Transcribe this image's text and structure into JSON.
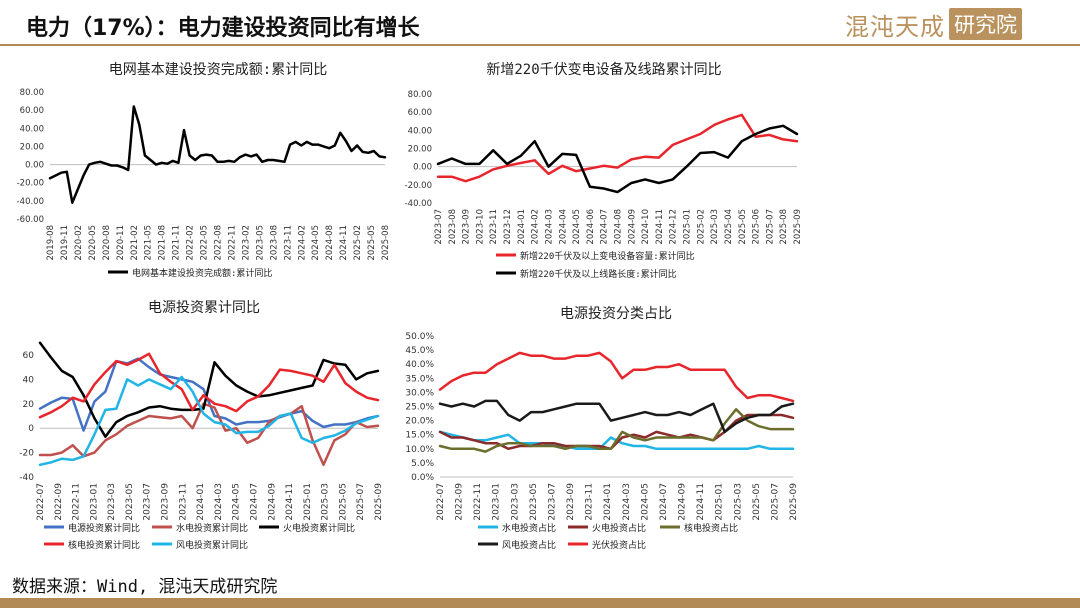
{
  "header": {
    "title": "电力（17%）：电力建设投资同比有增长",
    "logo_text": "混沌天成",
    "logo_box": "研究院"
  },
  "colors": {
    "black": "#000000",
    "red": "#e8252b",
    "blue": "#4472c4",
    "brown": "#c0504d",
    "lightblue": "#21b5e6",
    "dark": "#1a1a1a",
    "olive": "#6b6e2d",
    "maroon": "#8b2a2a"
  },
  "footer": {
    "source": "数据来源：Wind, 混沌天成研究院"
  },
  "chart_data": [
    {
      "type": "line",
      "title": "电网基本建设投资完成额:累计同比",
      "ylim": [
        -60,
        80
      ],
      "yticks": [
        "80.00",
        "60.00",
        "40.00",
        "20.00",
        "0.00",
        "-20.00",
        "-40.00",
        "-60.00"
      ],
      "ytick_values": [
        80,
        60,
        40,
        20,
        0,
        -20,
        -40,
        -60
      ],
      "tick_labels": [
        "2019-08",
        "2019-11",
        "2020-02",
        "2020-05",
        "2020-08",
        "2020-11",
        "2021-02",
        "2021-05",
        "2021-08",
        "2021-11",
        "2022-02",
        "2022-05",
        "2022-08",
        "2022-11",
        "2023-02",
        "2023-05",
        "2023-08",
        "2023-11",
        "2024-02",
        "2024-05",
        "2024-08",
        "2024-11",
        "2025-02",
        "2025-05",
        "2025-08"
      ],
      "series": [
        {
          "name": "电网基本建设投资完成额:累计同比",
          "color": "#000000",
          "values": [
            -15,
            -12,
            -9,
            -8,
            -42,
            -27,
            -12,
            0,
            2,
            3,
            1,
            -1,
            -1,
            -3,
            -6,
            64,
            44,
            10,
            5,
            0,
            2,
            1,
            4,
            2,
            38,
            10,
            5,
            10,
            11,
            10,
            3,
            3,
            4,
            3,
            8,
            11,
            9,
            11,
            3,
            5,
            5,
            4,
            3,
            22,
            25,
            21,
            25,
            22,
            22,
            20,
            18,
            21,
            35,
            26,
            15,
            21,
            14,
            13,
            15,
            9,
            8
          ]
        }
      ]
    },
    {
      "type": "line",
      "title": "新增220千伏变电设备及线路累计同比",
      "ylim": [
        -40,
        80
      ],
      "yticks": [
        "80.00",
        "60.00",
        "40.00",
        "20.00",
        "0.00",
        "-20.00",
        "-40.00"
      ],
      "ytick_values": [
        80,
        60,
        40,
        20,
        0,
        -20,
        -40
      ],
      "tick_labels": [
        "2023-07",
        "2023-08",
        "2023-09",
        "2023-10",
        "2023-11",
        "2023-12",
        "2024-01",
        "2024-02",
        "2024-03",
        "2024-04",
        "2024-05",
        "2024-06",
        "2024-07",
        "2024-08",
        "2024-09",
        "2024-10",
        "2024-11",
        "2024-12",
        "2025-01",
        "2025-02",
        "2025-03",
        "2025-04",
        "2025-05",
        "2025-06",
        "2025-07",
        "2025-08",
        "2025-09"
      ],
      "series": [
        {
          "name": "新增220千伏及以上变电设备容量:累计同比",
          "color": "#e8252b",
          "values": [
            -11,
            -11,
            -16,
            -11,
            -3,
            1,
            4,
            7,
            -8,
            1,
            -5,
            -2,
            1,
            -1,
            8,
            11,
            10,
            24,
            30,
            36,
            46,
            52,
            57,
            33,
            35,
            30,
            28
          ]
        },
        {
          "name": "新增220千伏及以上线路长度:累计同比",
          "color": "#000000",
          "values": [
            3,
            9,
            3,
            3,
            18,
            3,
            12,
            28,
            0,
            14,
            13,
            -22,
            -24,
            -28,
            -18,
            -14,
            -18,
            -14,
            0,
            15,
            16,
            10,
            28,
            36,
            42,
            45,
            36
          ]
        }
      ]
    },
    {
      "type": "line",
      "title": "电源投资累计同比",
      "ylim": [
        -40,
        60
      ],
      "yticks": [
        "60",
        "40",
        "20",
        "0",
        "-20",
        "-40"
      ],
      "ytick_values": [
        60,
        40,
        20,
        0,
        -20,
        -40
      ],
      "tick_labels": [
        "2022-07",
        "2022-09",
        "2022-11",
        "2023-01",
        "2023-03",
        "2023-05",
        "2023-07",
        "2023-09",
        "2023-11",
        "2024-01",
        "2024-03",
        "2024-05",
        "2024-07",
        "2024-09",
        "2024-11",
        "2025-01",
        "2025-03",
        "2025-05",
        "2025-07",
        "2025-09"
      ],
      "series": [
        {
          "name": "电源投资累计同比",
          "color": "#4472c4",
          "values": [
            16,
            21,
            25,
            24,
            -2,
            22,
            30,
            55,
            53,
            57,
            50,
            44,
            42,
            40,
            38,
            32,
            10,
            8,
            3,
            5,
            5,
            6,
            9,
            12,
            14,
            6,
            1,
            3,
            3,
            5,
            8,
            10
          ]
        },
        {
          "name": "水电投资累计同比",
          "color": "#c0504d",
          "values": [
            -22,
            -22,
            -20,
            -14,
            -23,
            -20,
            -10,
            -5,
            2,
            6,
            10,
            9,
            8,
            10,
            0,
            20,
            17,
            -2,
            0,
            -12,
            -8,
            5,
            10,
            12,
            18,
            -10,
            -30,
            -10,
            -5,
            5,
            1,
            2
          ]
        },
        {
          "name": "火电投资累计同比",
          "color": "#000000",
          "values": [
            70,
            58,
            47,
            42,
            27,
            8,
            -7,
            5,
            10,
            13,
            17,
            18,
            16,
            15,
            15,
            16,
            54,
            43,
            35,
            30,
            26,
            27,
            29,
            31,
            33,
            35,
            56,
            53,
            52,
            40,
            45,
            47
          ]
        },
        {
          "name": "核电投资累计同比",
          "color": "#e8252b",
          "values": [
            9,
            13,
            18,
            25,
            22,
            36,
            46,
            55,
            52,
            56,
            61,
            45,
            38,
            32,
            15,
            27,
            20,
            18,
            14,
            22,
            26,
            35,
            48,
            47,
            45,
            43,
            38,
            52,
            37,
            30,
            25,
            23
          ]
        },
        {
          "name": "风电投资累计同比",
          "color": "#21b5e6",
          "values": [
            -30,
            -28,
            -25,
            -26,
            -23,
            -5,
            15,
            16,
            40,
            35,
            40,
            36,
            32,
            42,
            30,
            12,
            5,
            3,
            -4,
            -3,
            -3,
            2,
            10,
            12,
            -8,
            -12,
            -8,
            -6,
            -2,
            4,
            7,
            10
          ]
        }
      ]
    },
    {
      "type": "line",
      "title": "电源投资分类占比",
      "ylim": [
        0,
        50
      ],
      "yticks": [
        "50.0%",
        "45.0%",
        "40.0%",
        "35.0%",
        "30.0%",
        "25.0%",
        "20.0%",
        "15.0%",
        "10.0%",
        "5.0%",
        "0.0%"
      ],
      "ytick_values": [
        50,
        45,
        40,
        35,
        30,
        25,
        20,
        15,
        10,
        5,
        0
      ],
      "tick_labels": [
        "2022-07",
        "2022-09",
        "2022-11",
        "2023-01",
        "2023-03",
        "2023-05",
        "2023-07",
        "2023-09",
        "2023-11",
        "2024-01",
        "2024-03",
        "2024-05",
        "2024-07",
        "2024-09",
        "2024-11",
        "2025-01",
        "2025-03",
        "2025-05",
        "2025-07",
        "2025-09"
      ],
      "series": [
        {
          "name": "水电投资占比",
          "color": "#21b5e6",
          "values": [
            16,
            15,
            14,
            13,
            13,
            14,
            15,
            12,
            12,
            12,
            11,
            11,
            10,
            10,
            10,
            14,
            12,
            11,
            11,
            10,
            10,
            10,
            10,
            10,
            10,
            10,
            10,
            10,
            11,
            10,
            10,
            10
          ]
        },
        {
          "name": "火电投资占比",
          "color": "#8b2a2a",
          "values": [
            16,
            14,
            14,
            13,
            12,
            12,
            10,
            11,
            11,
            12,
            12,
            11,
            11,
            11,
            11,
            10,
            14,
            15,
            14,
            16,
            15,
            14,
            15,
            14,
            13,
            16,
            20,
            22,
            22,
            22,
            22,
            21
          ]
        },
        {
          "name": "核电投资占比",
          "color": "#6b6e2d",
          "values": [
            11,
            10,
            10,
            10,
            9,
            11,
            12,
            12,
            11,
            11,
            11,
            10,
            11,
            11,
            10,
            10,
            16,
            14,
            13,
            14,
            14,
            14,
            14,
            14,
            13,
            19,
            24,
            20,
            18,
            17,
            17,
            17
          ]
        },
        {
          "name": "风电投资占比",
          "color": "#1a1a1a",
          "values": [
            26,
            25,
            26,
            25,
            27,
            27,
            22,
            20,
            23,
            23,
            24,
            25,
            26,
            26,
            26,
            20,
            21,
            22,
            23,
            22,
            22,
            23,
            22,
            24,
            26,
            16,
            19,
            21,
            22,
            22,
            25,
            26
          ]
        },
        {
          "name": "光伏投资占比",
          "color": "#e8252b",
          "values": [
            31,
            34,
            36,
            37,
            37,
            40,
            42,
            44,
            43,
            43,
            42,
            42,
            43,
            43,
            44,
            41,
            35,
            38,
            38,
            39,
            39,
            40,
            38,
            38,
            38,
            38,
            32,
            28,
            29,
            29,
            28,
            27
          ]
        }
      ]
    }
  ]
}
